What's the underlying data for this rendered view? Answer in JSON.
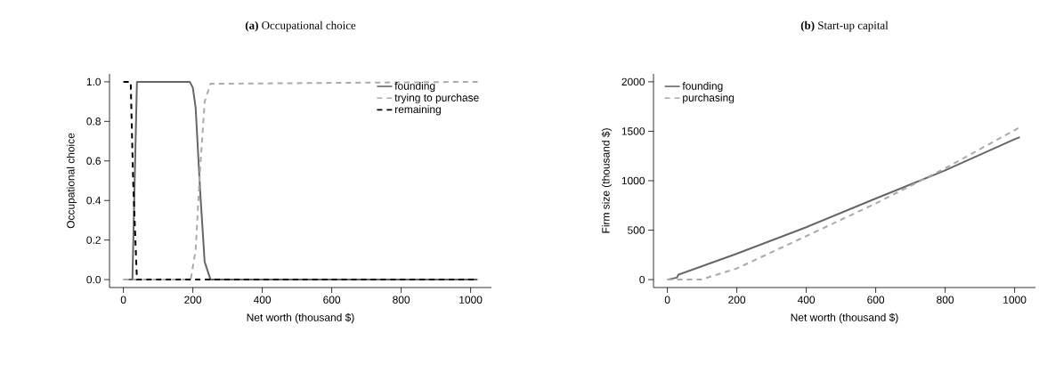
{
  "chart_data": [
    {
      "type": "line",
      "title": "**(a)** Occupational choice",
      "xlabel": "Net worth (thousand $)",
      "ylabel": "Occupational choice",
      "xlim": [
        -40,
        1060
      ],
      "ylim": [
        -0.04,
        1.04
      ],
      "xticks": [
        0,
        200,
        400,
        600,
        800,
        1000
      ],
      "yticks": [
        {
          "value": 0,
          "label": "0.0"
        },
        0.2,
        0.4,
        0.6,
        0.8,
        {
          "value": 1,
          "label": "1.0"
        }
      ],
      "legend": "top right",
      "marker": "none",
      "series": [
        {
          "name": "founding",
          "color": "#666666",
          "line_style": "solid",
          "x": [
            0,
            26,
            39,
            191,
            200,
            208,
            221,
            234,
            251,
            1020
          ],
          "values": [
            0,
            0,
            1,
            1,
            0.97,
            0.87,
            0.45,
            0.09,
            0,
            0
          ]
        },
        {
          "name": "trying to purchase",
          "color": "#aaaaaa",
          "line_style": "dashed",
          "x": [
            0,
            194,
            208,
            221,
            234,
            251,
            1020
          ],
          "values": [
            0,
            0,
            0.15,
            0.56,
            0.9,
            0.99,
            1
          ]
        },
        {
          "name": "remaining",
          "color": "#000000",
          "line_style": "dashed",
          "x": [
            0,
            21,
            28,
            39,
            1020
          ],
          "values": [
            1,
            1,
            0.5,
            0,
            0
          ]
        }
      ]
    },
    {
      "type": "line",
      "title": "**(b)** Start-up capital",
      "xlabel": "Net worth (thousand $)",
      "ylabel": "Firm size (thousand $)",
      "xlim": [
        -40,
        1060
      ],
      "ylim": [
        -80,
        2080
      ],
      "xticks": [
        0,
        200,
        400,
        600,
        800,
        1000
      ],
      "yticks": [
        0,
        500,
        1000,
        1500,
        2000
      ],
      "legend": "top left",
      "marker": "none",
      "series": [
        {
          "name": "founding",
          "color": "#666666",
          "line_style": "solid",
          "x": [
            0,
            27,
            32,
            198,
            400,
            600,
            797,
            1000,
            1015
          ],
          "values": [
            0,
            20,
            50,
            260,
            530,
            820,
            1100,
            1420,
            1440
          ]
        },
        {
          "name": "purchasing",
          "color": "#aaaaaa",
          "line_style": "dashed",
          "x": [
            0,
            96,
            198,
            400,
            600,
            797,
            1015
          ],
          "values": [
            0,
            0,
            110,
            440,
            770,
            1120,
            1540
          ]
        }
      ]
    }
  ]
}
